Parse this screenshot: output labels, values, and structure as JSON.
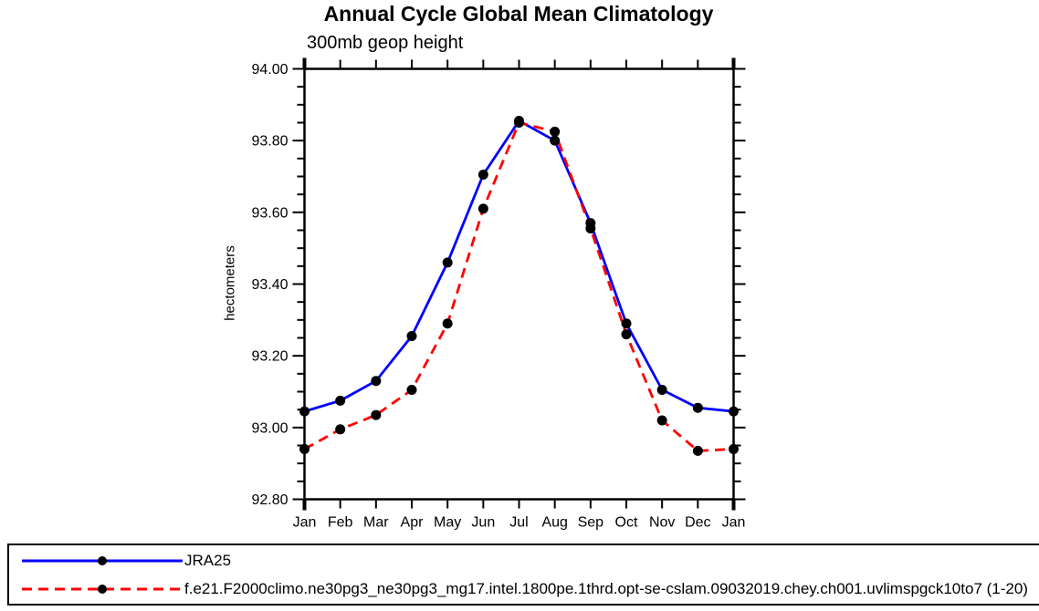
{
  "title": "Annual Cycle Global Mean Climatology",
  "subtitle": "300mb geop height",
  "chart_data": {
    "type": "line",
    "x_categories": [
      "Jan",
      "Feb",
      "Mar",
      "Apr",
      "May",
      "Jun",
      "Jul",
      "Aug",
      "Sep",
      "Oct",
      "Nov",
      "Dec",
      "Jan"
    ],
    "xlabel": "",
    "ylabel": "hectometers",
    "ylim": [
      92.8,
      94.0
    ],
    "ytick_major": 0.2,
    "ytick_minor": 0.05,
    "grid": "off",
    "legend_position": "bottom-outside-boxed",
    "marker": "black-dot",
    "marker_color": "#000000",
    "series": [
      {
        "name": "JRA25",
        "color": "#0000ff",
        "line_style": "solid",
        "values": [
          93.045,
          93.075,
          93.13,
          93.255,
          93.46,
          93.705,
          93.855,
          93.8,
          93.57,
          93.29,
          93.105,
          93.055,
          93.045
        ]
      },
      {
        "name": "f.e21.F2000climo.ne30pg3_ne30pg3_mg17.intel.1800pe.1thrd.opt-se-cslam.09032019.chey.ch001.uvlimspgck10to7 (1-20)",
        "color": "#ff0000",
        "line_style": "dashed",
        "values": [
          92.94,
          92.995,
          93.035,
          93.105,
          93.29,
          93.61,
          93.85,
          93.825,
          93.555,
          93.26,
          93.02,
          92.935,
          92.94
        ]
      }
    ]
  }
}
